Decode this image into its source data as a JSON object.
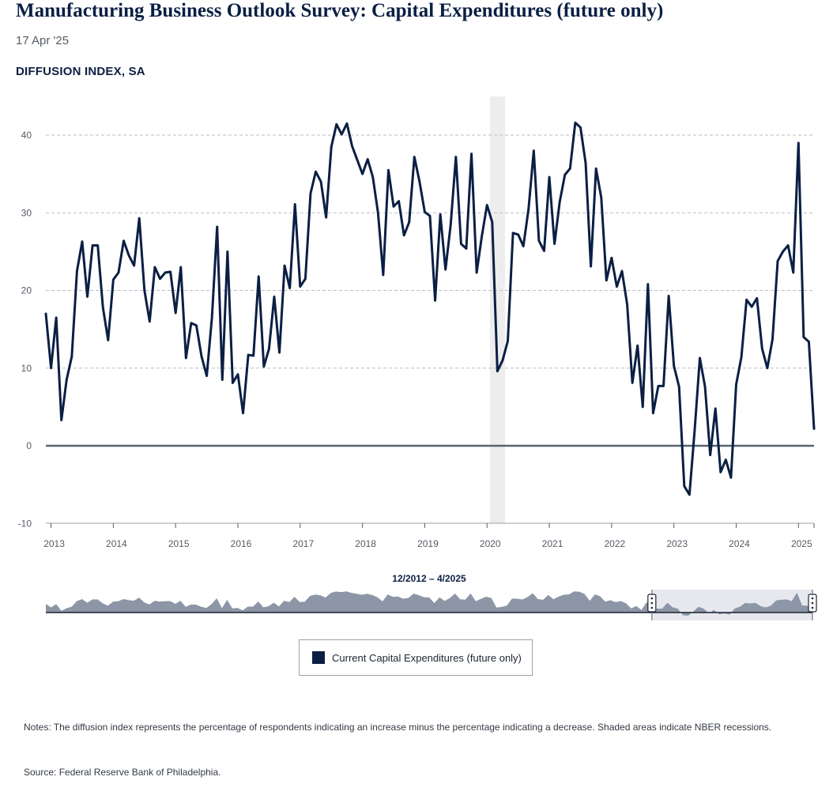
{
  "header": {
    "title": "Manufacturing Business Outlook Survey: Capital Expenditures (future only)",
    "date": "17 Apr '25",
    "y_axis_label": "DIFFUSION INDEX, SA"
  },
  "navigator": {
    "range_label": "12/2012 – 4/2025",
    "selection_start": "2022-09",
    "selection_end": "2025-04"
  },
  "legend": {
    "items": [
      {
        "label": "Current Capital Expenditures (future only)",
        "color": "#0b1f44"
      }
    ]
  },
  "footer": {
    "notes": "Notes: The diffusion index represents the percentage of respondents indicating an increase minus the percentage indicating a decrease. Shaded areas indicate NBER recessions.",
    "source": "Source: Federal Reserve Bank of Philadelphia."
  },
  "colors": {
    "line": "#0b1f44",
    "recession": "#ededed",
    "grid": "#b9bec6",
    "zero_line": "#5a6270",
    "navigator_fill": "#8d96a6",
    "navigator_selection": "#e6e8ee"
  },
  "chart_data": {
    "type": "line",
    "title": "Manufacturing Business Outlook Survey: Capital Expenditures (future only)",
    "ylabel": "DIFFUSION INDEX, SA",
    "ylim": [
      -10,
      45
    ],
    "yticks": [
      -10,
      0,
      10,
      20,
      30,
      40
    ],
    "xticks": [
      "2013",
      "2014",
      "2015",
      "2016",
      "2017",
      "2018",
      "2019",
      "2020",
      "2021",
      "2022",
      "2023",
      "2024",
      "2025"
    ],
    "x_start": "2012-12",
    "x_end": "2025-04",
    "grid": true,
    "legend_position": "bottom",
    "recessions": [
      {
        "start": "2020-02",
        "end": "2020-04"
      }
    ],
    "series": [
      {
        "name": "Current Capital Expenditures (future only)",
        "frequency": "monthly",
        "start": "2012-12",
        "values": [
          17,
          10,
          16.5,
          3.3,
          8.5,
          11.5,
          22.5,
          26.3,
          19.2,
          25.8,
          25.8,
          17.8,
          13.6,
          21.4,
          22.3,
          26.4,
          24.5,
          23.2,
          29.3,
          20,
          16,
          23,
          21.5,
          22.3,
          22.4,
          17.1,
          23,
          11.3,
          15.8,
          15.5,
          11.5,
          9,
          16.5,
          28.2,
          8.5,
          25,
          8.1,
          9.2,
          4.2,
          11.7,
          11.6,
          21.8,
          10.2,
          12.5,
          19.2,
          12,
          23.2,
          20.3,
          31.1,
          20.5,
          21.5,
          32.5,
          35.3,
          34,
          29.4,
          38.5,
          41.4,
          40.1,
          41.5,
          38.6,
          36.8,
          35,
          36.9,
          34.6,
          30,
          22,
          35.5,
          30.8,
          31.5,
          27.1,
          28.8,
          37.2,
          34,
          30.1,
          29.6,
          18.7,
          29.8,
          22.7,
          28.5,
          37.2,
          26,
          25.4,
          37.6,
          22.3,
          27,
          31,
          28.8,
          9.6,
          11,
          13.5,
          27.4,
          27.2,
          25.7,
          30.5,
          38,
          26.4,
          25.1,
          34.6,
          26,
          31.4,
          34.9,
          35.7,
          41.6,
          41,
          36.4,
          23.1,
          35.7,
          32,
          21.3,
          24.2,
          20.5,
          22.5,
          18.2,
          8.1,
          12.9,
          5,
          20.8,
          4.2,
          7.7,
          7.7,
          19.3,
          10.3,
          7.6,
          -5.2,
          -6.3,
          2,
          11.3,
          7.6,
          -1.2,
          4.8,
          -3.4,
          -1.8,
          -4.1,
          7.9,
          11.4,
          18.8,
          17.9,
          19,
          12.5,
          10,
          13.7,
          23.8,
          25,
          25.8,
          22.3,
          39,
          14,
          13.4,
          2.2
        ]
      }
    ]
  }
}
